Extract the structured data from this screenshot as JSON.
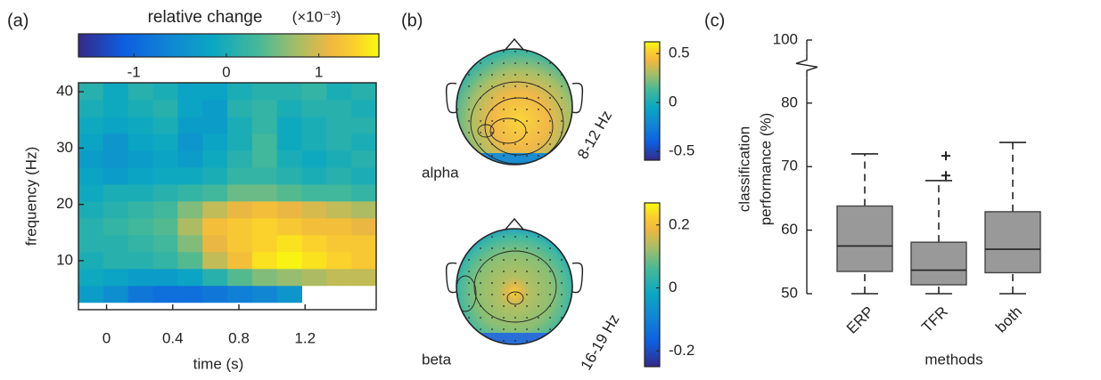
{
  "chart_data": [
    {
      "type": "heatmap",
      "panel_label": "(a)",
      "colorbar_label": "relative change",
      "colorbar_scale": "(×10⁻³)",
      "xlabel": "time (s)",
      "ylabel": "frequency (Hz)",
      "colormap": "parula",
      "xlim": [
        -0.17,
        1.63
      ],
      "ylim": [
        1.3,
        41.6
      ],
      "xticks": [
        0,
        0.4,
        0.8,
        1.2
      ],
      "yticks": [
        10,
        20,
        30,
        40
      ],
      "clim": [
        -1.6,
        1.65
      ],
      "cticks": [
        -1,
        0,
        1
      ],
      "xbins": [
        -0.17,
        -0.02,
        0.13,
        0.28,
        0.43,
        0.58,
        0.73,
        0.88,
        1.03,
        1.18,
        1.33,
        1.48,
        1.63
      ],
      "ybins": [
        2.6,
        5.6,
        8.6,
        11.6,
        14.6,
        17.6,
        20.6,
        23.6,
        26.6,
        29.6,
        32.6,
        35.6,
        38.6,
        41.6
      ],
      "z": [
        [
          -0.3,
          -0.5,
          -0.8,
          -0.9,
          -0.9,
          -0.8,
          -0.7,
          -0.6,
          -0.4,
          null,
          null,
          null
        ],
        [
          -0.1,
          -0.2,
          -0.3,
          -0.3,
          -0.2,
          0.1,
          0.4,
          0.6,
          0.7,
          0.8,
          0.9,
          0.9
        ],
        [
          0,
          0.1,
          0.1,
          0.2,
          0.4,
          0.9,
          1.2,
          1.5,
          1.6,
          1.5,
          1.4,
          1.3
        ],
        [
          0.1,
          0.1,
          0.2,
          0.3,
          0.6,
          1.1,
          1.3,
          1.4,
          1.5,
          1.4,
          1.3,
          1.3
        ],
        [
          0.1,
          0.2,
          0.3,
          0.4,
          0.8,
          1.2,
          1.3,
          1.4,
          1.3,
          1.2,
          1.2,
          1.1
        ],
        [
          0,
          0.1,
          0.2,
          0.3,
          0.6,
          0.9,
          1.1,
          1.2,
          1.1,
          1.0,
          0.9,
          0.8
        ],
        [
          -0.1,
          0,
          0,
          0.1,
          0.2,
          0.3,
          0.5,
          0.5,
          0.4,
          0.3,
          0.3,
          0.2
        ],
        [
          -0.2,
          -0.3,
          -0.2,
          -0.1,
          -0.1,
          0,
          0.2,
          0.2,
          0.1,
          0,
          0.1,
          0
        ],
        [
          -0.3,
          -0.4,
          -0.3,
          -0.2,
          -0.3,
          -0.1,
          0.1,
          0.3,
          0,
          -0.1,
          0,
          0.1
        ],
        [
          -0.2,
          -0.4,
          -0.2,
          -0.1,
          -0.4,
          -0.2,
          0,
          0.3,
          -0.1,
          0,
          0.1,
          0
        ],
        [
          -0.1,
          -0.2,
          -0.1,
          0,
          -0.3,
          -0.3,
          0,
          0.2,
          -0.1,
          0,
          0.1,
          0.1
        ],
        [
          0,
          -0.1,
          0,
          0.1,
          -0.2,
          -0.3,
          0.1,
          0.2,
          0,
          0.1,
          0.1,
          0
        ],
        [
          0.1,
          -0.1,
          0.1,
          0,
          -0.2,
          -0.2,
          0,
          0.1,
          0.1,
          0.2,
          0,
          0.1
        ]
      ]
    },
    {
      "type": "topoplot",
      "panel_label": "(b)",
      "label": "alpha",
      "band": "8-12 Hz",
      "colormap": "parula",
      "clim": [
        -0.59,
        0.62
      ],
      "cticks": [
        -0.5,
        0,
        0.5
      ]
    },
    {
      "type": "topoplot",
      "label": "beta",
      "band": "16-19 Hz",
      "colormap": "parula",
      "clim": [
        -0.25,
        0.27
      ],
      "cticks": [
        -0.2,
        0,
        0.2
      ]
    },
    {
      "type": "box",
      "panel_label": "(c)",
      "xlabel": "methods",
      "ylabel": [
        "classification",
        "performance (%)"
      ],
      "categories": [
        "ERP",
        "TFR",
        "both"
      ],
      "color": "#999999",
      "whisker_low": [
        50,
        50,
        50
      ],
      "q1": [
        53.5,
        51.4,
        53.3
      ],
      "median": [
        57.5,
        53.7,
        57.0
      ],
      "q3": [
        63.8,
        58.1,
        62.9
      ],
      "whisker_high": [
        72,
        67.8,
        73.8
      ],
      "outliers": [
        [],
        [
          71.7,
          68.6
        ],
        []
      ],
      "ylim": [
        50,
        100
      ],
      "axis_break": [
        84,
        98
      ],
      "yticks": [
        50,
        60,
        70,
        80,
        100
      ]
    }
  ]
}
